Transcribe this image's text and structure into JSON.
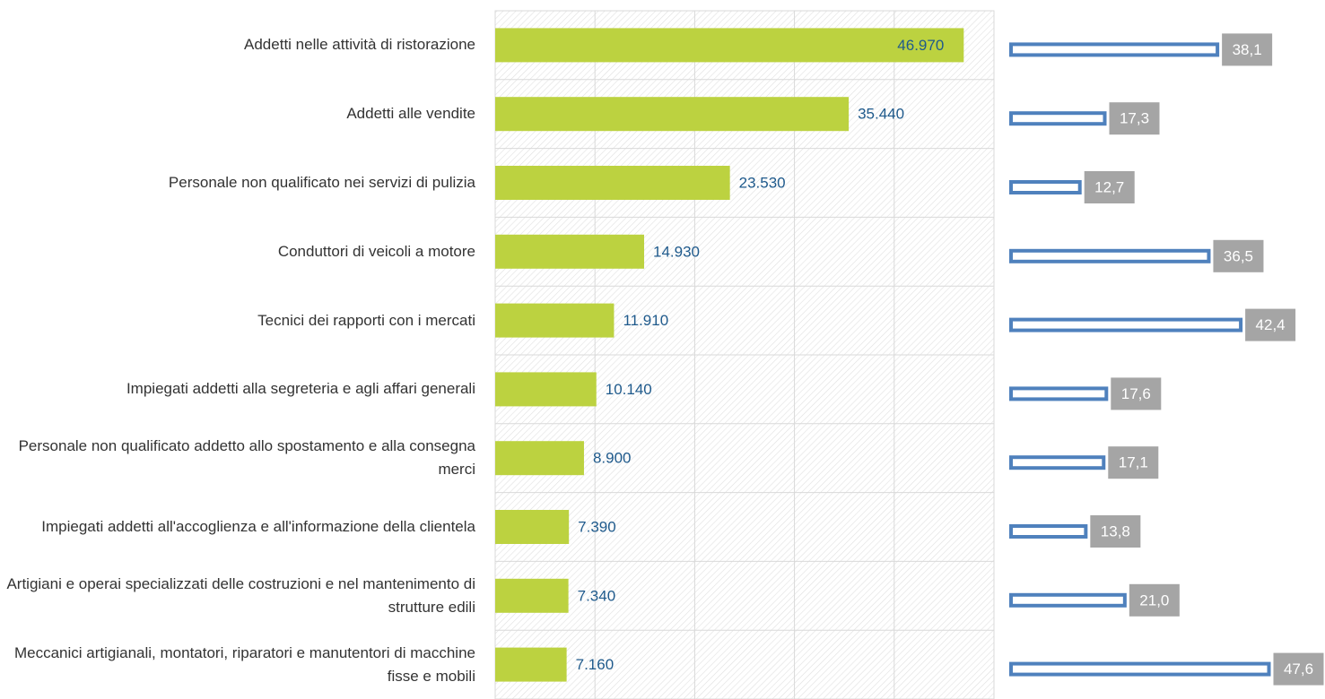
{
  "chart_data": [
    {
      "type": "bar",
      "categories": [
        "Addetti nelle attività di ristorazione",
        "Addetti alle vendite",
        "Personale non qualificato nei servizi di pulizia",
        "Conduttori di veicoli a motore",
        "Tecnici dei rapporti con i mercati",
        "Impiegati addetti alla segreteria e agli affari generali",
        "Personale non qualificato addetto allo spostamento e alla consegna merci",
        "Impiegati addetti all'accoglienza e all'informazione della clientela",
        "Artigiani e operai specializzati delle costruzioni e nel mantenimento di strutture edili",
        "Meccanici artigianali, montatori, riparatori e manutentori di macchine fisse e mobili"
      ],
      "values": [
        46970,
        35440,
        23530,
        14930,
        11910,
        10140,
        8900,
        7390,
        7340,
        7160
      ],
      "value_labels": [
        "46.970",
        "35.440",
        "23.530",
        "14.930",
        "11.910",
        "10.140",
        "8.900",
        "7.390",
        "7.340",
        "7.160"
      ],
      "color": "#bcd240",
      "xlim": [
        0,
        50000
      ],
      "xticks": [
        0,
        10000,
        20000,
        30000,
        40000,
        50000
      ],
      "grid": true
    },
    {
      "type": "outline-bar",
      "values": [
        38.1,
        17.3,
        12.7,
        36.5,
        42.4,
        17.6,
        17.1,
        13.8,
        21.0,
        47.6
      ],
      "value_labels": [
        "38,1",
        "17,3",
        "12,7",
        "36,5",
        "42,4",
        "17,6",
        "17,1",
        "13,8",
        "21,0",
        "47,6"
      ],
      "color": "#4f81bd",
      "xlim": [
        0,
        50
      ]
    }
  ]
}
